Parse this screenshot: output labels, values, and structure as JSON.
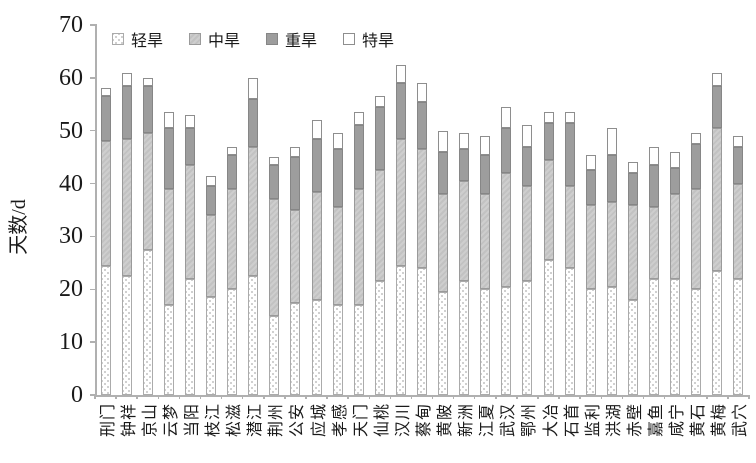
{
  "chart_data": {
    "type": "bar",
    "stacked": true,
    "ylabel": "天数/d",
    "ylim": [
      0,
      70
    ],
    "yticks": [
      0,
      10,
      20,
      30,
      40,
      50,
      60,
      70
    ],
    "grid": false,
    "legend_position": "top-inside",
    "categories": [
      "刑门",
      "钟祥",
      "京山",
      "云梦",
      "当阳",
      "枝江",
      "松滋",
      "潜江",
      "荆州",
      "公安",
      "应城",
      "孝感",
      "天门",
      "仙桃",
      "汉川",
      "蔡甸",
      "黄陂",
      "新洲",
      "江夏",
      "武汉",
      "鄂州",
      "大冶",
      "石首",
      "监利",
      "洪湖",
      "赤壁",
      "嘉鱼",
      "咸宁",
      "黄石",
      "黄梅",
      "武穴"
    ],
    "series": [
      {
        "name": "轻旱",
        "key": "light-drought",
        "style": "dots",
        "color": "#ffffff",
        "values": [
          24.5,
          22.5,
          27.5,
          17,
          22,
          18.5,
          20,
          22.5,
          15,
          17.5,
          18,
          17,
          17,
          21.5,
          24.5,
          24,
          19.5,
          21.5,
          20,
          20.5,
          21.5,
          25.5,
          24,
          20,
          20.5,
          18,
          22,
          22,
          20,
          23.5,
          22
        ]
      },
      {
        "name": "中旱",
        "key": "moderate-drought",
        "style": "hatch",
        "color": "#c8c8c8",
        "values": [
          23.5,
          26,
          22,
          22,
          21.5,
          15.5,
          19,
          24.5,
          22,
          17.5,
          20.5,
          18.5,
          22,
          21,
          24,
          22.5,
          18.5,
          19,
          18,
          21.5,
          18,
          19,
          15.5,
          16,
          16,
          18,
          13.5,
          16,
          19,
          27,
          18
        ]
      },
      {
        "name": "重旱",
        "key": "severe-drought",
        "style": "solid",
        "color": "#9d9d9d",
        "values": [
          8.5,
          10,
          9,
          11.5,
          7,
          5.5,
          6.5,
          9,
          6.5,
          10,
          10,
          11,
          12,
          12,
          10.5,
          9,
          8,
          6,
          7.5,
          8.5,
          7.5,
          7,
          12,
          6.5,
          9,
          6,
          8,
          5,
          8.5,
          8,
          7
        ]
      },
      {
        "name": "特旱",
        "key": "extreme-drought",
        "style": "white",
        "color": "#ffffff",
        "values": [
          1.5,
          2.5,
          1.5,
          3,
          2.5,
          2,
          1.5,
          4,
          1.5,
          2,
          3.5,
          3,
          2.5,
          2,
          3.5,
          3.5,
          4,
          3,
          3.5,
          4,
          4,
          2,
          2,
          3,
          5,
          2,
          3.5,
          3,
          2,
          2.5,
          2
        ]
      }
    ],
    "axis_color": "#b0b0b0",
    "text_color": "#1a1a1a"
  }
}
